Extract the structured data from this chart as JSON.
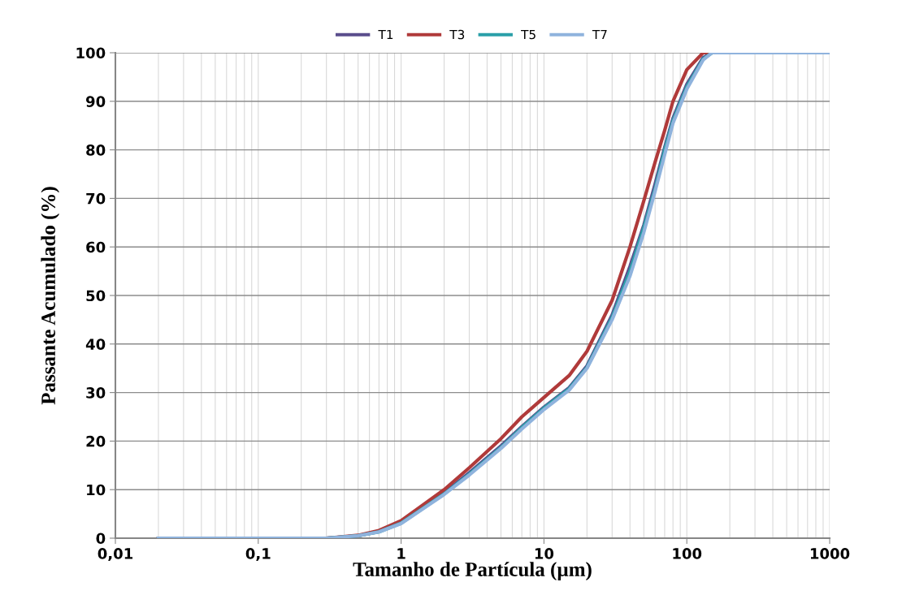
{
  "chart_data": {
    "type": "line",
    "xlabel": "Tamanho de Partícula (µm)",
    "ylabel": "Passante Acumulado (%)",
    "x": [
      0.02,
      0.1,
      0.3,
      0.5,
      0.7,
      1,
      2,
      3,
      5,
      7,
      10,
      15,
      20,
      30,
      40,
      50,
      60,
      70,
      80,
      100,
      130,
      150,
      200,
      1000
    ],
    "series": [
      {
        "name": "T1",
        "color": "#5a4d8c",
        "values": [
          0,
          0,
          0,
          0.5,
          1.4,
          3.2,
          9.3,
          13.5,
          19,
          23,
          27,
          31,
          35.5,
          46,
          56,
          64.5,
          73,
          80.5,
          86.5,
          93.5,
          99,
          100,
          null,
          null
        ]
      },
      {
        "name": "T3",
        "color": "#b03a3a",
        "values": [
          0,
          0,
          0,
          0.6,
          1.6,
          3.6,
          10,
          14.5,
          20.5,
          25,
          29,
          33.5,
          38.5,
          49,
          60,
          69.5,
          77.5,
          84,
          90,
          96.5,
          100,
          100,
          null,
          null
        ]
      },
      {
        "name": "T5",
        "color": "#2a9fa8",
        "values": [
          0,
          0,
          0,
          0.5,
          1.3,
          3.1,
          9.1,
          13.2,
          18.7,
          22.8,
          26.8,
          30.8,
          35.2,
          45.5,
          55,
          64,
          72,
          80,
          86,
          93,
          98.7,
          100,
          100,
          100
        ]
      },
      {
        "name": "T7",
        "color": "#8fb3dd",
        "values": [
          0,
          0,
          0,
          0.5,
          1.3,
          3,
          9,
          13,
          18.5,
          22.5,
          26.5,
          30.5,
          35,
          45,
          54,
          63,
          71.5,
          79,
          85.5,
          92.5,
          98.5,
          100,
          100,
          100
        ]
      }
    ],
    "log": "x",
    "xlim": [
      0.01,
      1000
    ],
    "xticks": [
      {
        "value": 0.01,
        "label": "0,01"
      },
      {
        "value": 0.1,
        "label": "0,1"
      },
      1,
      10,
      100,
      1000
    ],
    "ylim": [
      0,
      100
    ],
    "yticks": [
      0,
      10,
      20,
      30,
      40,
      50,
      60,
      70,
      80,
      90,
      100
    ],
    "grid": true,
    "legend": "top",
    "marker": "none",
    "line_style": "solid"
  }
}
